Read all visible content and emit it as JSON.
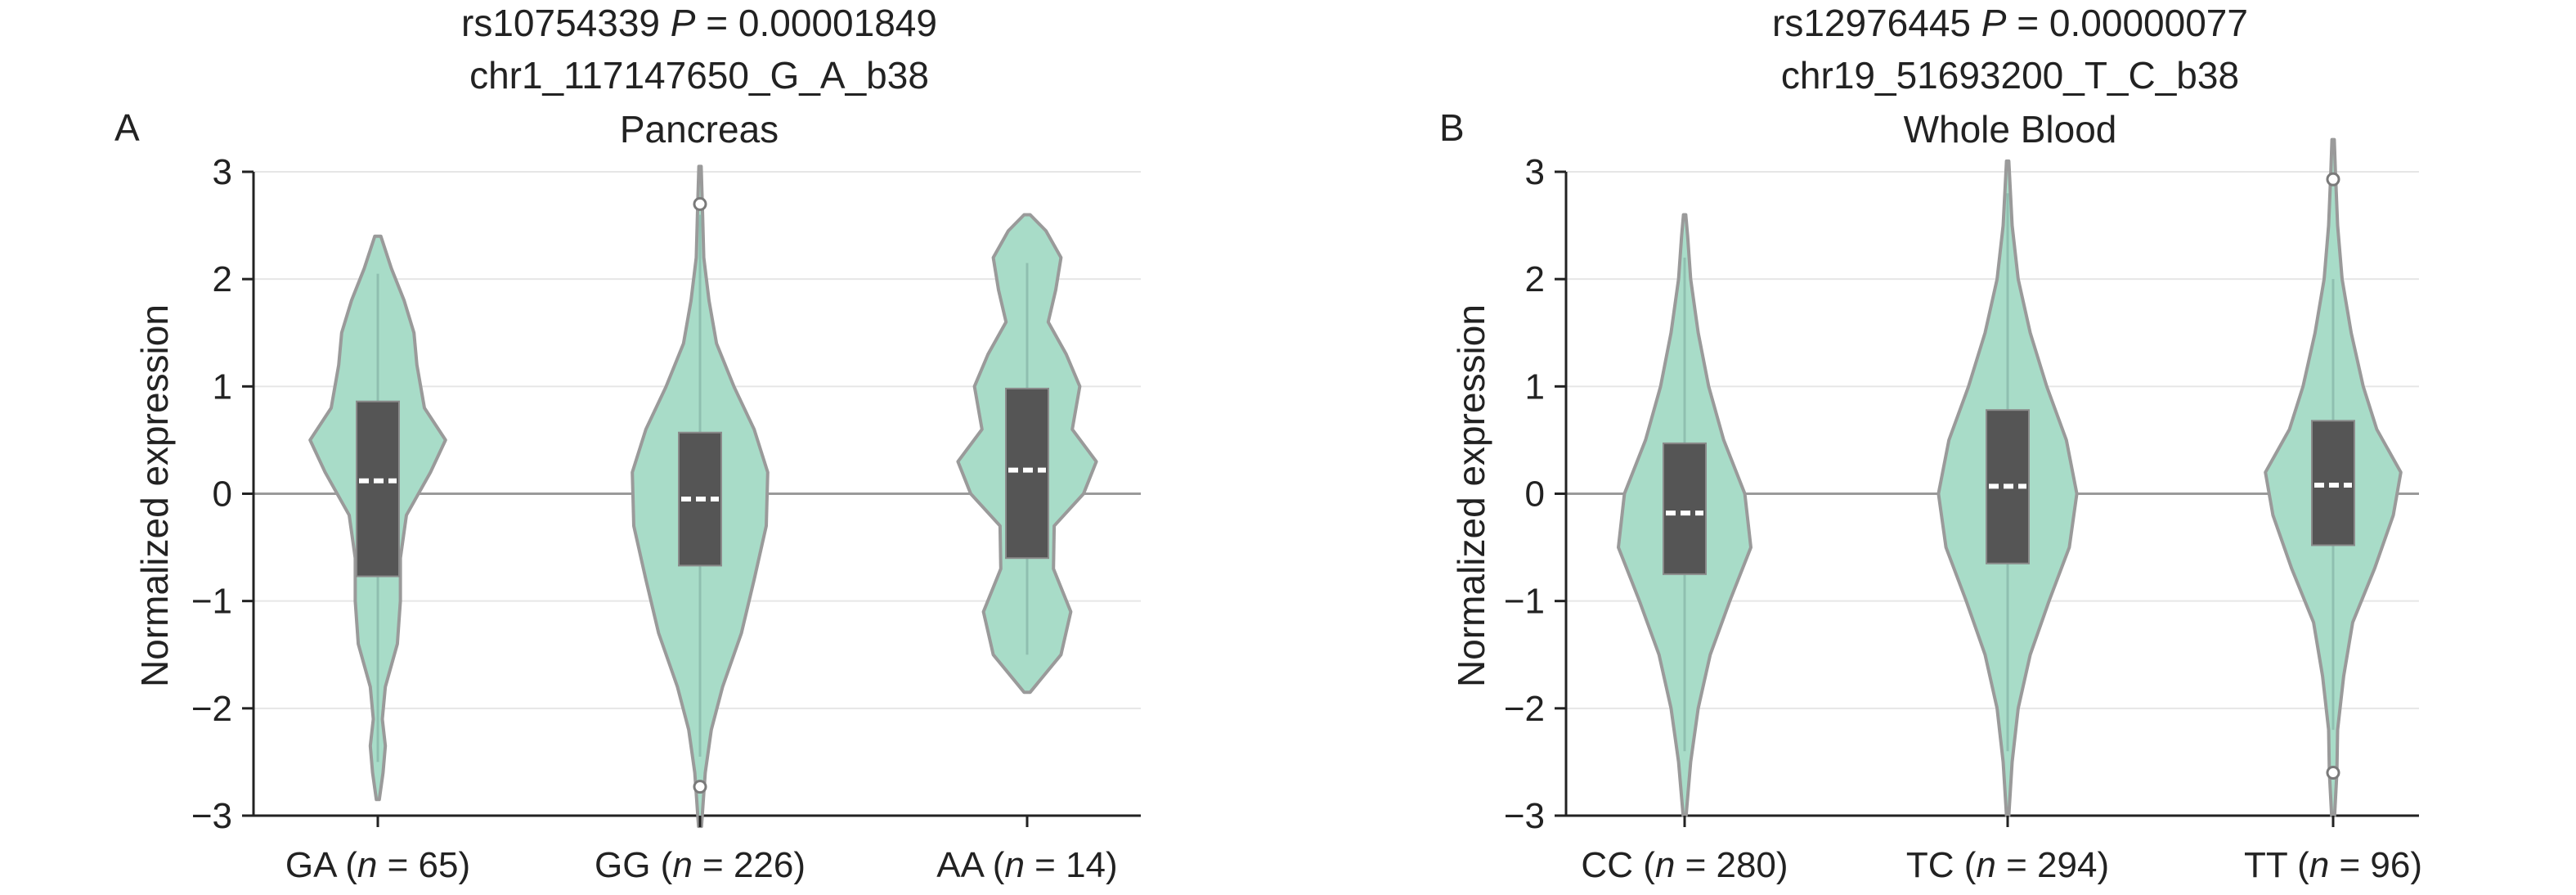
{
  "chart_data": [
    {
      "type": "violin",
      "panel": "A",
      "title": {
        "snp": "rs10754339",
        "p_label": "P",
        "p_value": "0.00001849",
        "variant": "chr1_117147650_G_A_b38",
        "tissue": "Pancreas"
      },
      "ylabel": "Normalized expression",
      "ylim": [
        -3,
        3
      ],
      "yticks": [
        "3",
        "2",
        "1",
        "0",
        "−1",
        "−2",
        "−3"
      ],
      "grid": "horizontal",
      "colors": {
        "violin_fill": "#a8dcc8",
        "violin_edge": "#9a9a9a",
        "box": "#555555",
        "median": "#ffffff"
      },
      "categories": [
        {
          "genotype": "GA",
          "n": 65,
          "n_letter": "n",
          "tail": ") ",
          "label_prefix": "GA (",
          "label_suffix": " = 65)",
          "q1": -0.77,
          "median": 0.12,
          "q3": 0.86,
          "whisker_low": -2.5,
          "whisker_high": 2.05,
          "outliers": [],
          "density": [
            [
              -2.85,
              0.02
            ],
            [
              -2.6,
              0.07
            ],
            [
              -2.35,
              0.1
            ],
            [
              -2.1,
              0.06
            ],
            [
              -1.8,
              0.1
            ],
            [
              -1.4,
              0.26
            ],
            [
              -1.0,
              0.3
            ],
            [
              -0.6,
              0.3
            ],
            [
              -0.2,
              0.38
            ],
            [
              0.2,
              0.7
            ],
            [
              0.5,
              0.9
            ],
            [
              0.8,
              0.62
            ],
            [
              1.2,
              0.52
            ],
            [
              1.5,
              0.48
            ],
            [
              1.8,
              0.35
            ],
            [
              2.1,
              0.18
            ],
            [
              2.4,
              0.04
            ]
          ]
        },
        {
          "genotype": "GG",
          "n": 226,
          "label_prefix": "GG (",
          "label_suffix": " = 226)",
          "q1": -0.67,
          "median": -0.05,
          "q3": 0.57,
          "whisker_low": -2.45,
          "whisker_high": 2.6,
          "outliers": [
            2.7,
            -2.73
          ],
          "density": [
            [
              -3.1,
              0.02
            ],
            [
              -2.6,
              0.07
            ],
            [
              -2.2,
              0.15
            ],
            [
              -1.8,
              0.3
            ],
            [
              -1.3,
              0.55
            ],
            [
              -0.8,
              0.72
            ],
            [
              -0.3,
              0.88
            ],
            [
              0.2,
              0.9
            ],
            [
              0.6,
              0.72
            ],
            [
              1.0,
              0.45
            ],
            [
              1.4,
              0.22
            ],
            [
              1.8,
              0.12
            ],
            [
              2.2,
              0.05
            ],
            [
              2.7,
              0.03
            ],
            [
              3.05,
              0.015
            ]
          ]
        },
        {
          "genotype": "AA",
          "n": 14,
          "label_prefix": "AA (",
          "label_suffix": " = 14)",
          "q1": -0.6,
          "median": 0.22,
          "q3": 0.98,
          "whisker_low": -1.5,
          "whisker_high": 2.15,
          "outliers": [],
          "density": [
            [
              -1.85,
              0.04
            ],
            [
              -1.5,
              0.45
            ],
            [
              -1.1,
              0.58
            ],
            [
              -0.7,
              0.35
            ],
            [
              -0.3,
              0.36
            ],
            [
              0.0,
              0.75
            ],
            [
              0.3,
              0.92
            ],
            [
              0.6,
              0.6
            ],
            [
              1.0,
              0.7
            ],
            [
              1.3,
              0.52
            ],
            [
              1.6,
              0.28
            ],
            [
              1.9,
              0.38
            ],
            [
              2.2,
              0.45
            ],
            [
              2.45,
              0.25
            ],
            [
              2.6,
              0.04
            ]
          ]
        }
      ]
    },
    {
      "type": "violin",
      "panel": "B",
      "title": {
        "snp": "rs12976445",
        "p_label": "P",
        "p_value": "0.00000077",
        "variant": "chr19_51693200_T_C_b38",
        "tissue": "Whole Blood"
      },
      "ylabel": "Normalized expression",
      "ylim": [
        -3,
        3
      ],
      "yticks": [
        "3",
        "2",
        "1",
        "0",
        "−1",
        "−2",
        "−3"
      ],
      "grid": "horizontal",
      "colors": {
        "violin_fill": "#a8dcc8",
        "violin_edge": "#9a9a9a",
        "box": "#555555",
        "median": "#ffffff"
      },
      "categories": [
        {
          "genotype": "CC",
          "n": 280,
          "label_prefix": "CC (",
          "label_suffix": " = 280)",
          "q1": -0.75,
          "median": -0.18,
          "q3": 0.47,
          "whisker_low": -2.4,
          "whisker_high": 2.2,
          "outliers": [],
          "density": [
            [
              -3.0,
              0.02
            ],
            [
              -2.5,
              0.08
            ],
            [
              -2.0,
              0.18
            ],
            [
              -1.5,
              0.34
            ],
            [
              -1.0,
              0.6
            ],
            [
              -0.5,
              0.88
            ],
            [
              0.0,
              0.8
            ],
            [
              0.5,
              0.52
            ],
            [
              1.0,
              0.32
            ],
            [
              1.5,
              0.18
            ],
            [
              2.0,
              0.08
            ],
            [
              2.4,
              0.04
            ],
            [
              2.6,
              0.015
            ]
          ]
        },
        {
          "genotype": "TC",
          "n": 294,
          "label_prefix": "TC (",
          "label_suffix": " = 294)",
          "q1": -0.65,
          "median": 0.07,
          "q3": 0.78,
          "whisker_low": -2.4,
          "whisker_high": 2.8,
          "outliers": [],
          "density": [
            [
              -3.0,
              0.015
            ],
            [
              -2.5,
              0.06
            ],
            [
              -2.0,
              0.14
            ],
            [
              -1.5,
              0.3
            ],
            [
              -1.0,
              0.55
            ],
            [
              -0.5,
              0.82
            ],
            [
              0.0,
              0.92
            ],
            [
              0.5,
              0.78
            ],
            [
              1.0,
              0.52
            ],
            [
              1.5,
              0.3
            ],
            [
              2.0,
              0.14
            ],
            [
              2.5,
              0.06
            ],
            [
              3.1,
              0.015
            ]
          ]
        },
        {
          "genotype": "TT",
          "n": 96,
          "label_prefix": "TT (",
          "label_suffix": " = 96)",
          "q1": -0.48,
          "median": 0.08,
          "q3": 0.68,
          "whisker_low": -2.2,
          "whisker_high": 2.0,
          "outliers": [
            2.93,
            -2.6
          ],
          "density": [
            [
              -3.0,
              0.02
            ],
            [
              -2.6,
              0.05
            ],
            [
              -2.2,
              0.06
            ],
            [
              -1.7,
              0.14
            ],
            [
              -1.2,
              0.26
            ],
            [
              -0.7,
              0.55
            ],
            [
              -0.2,
              0.8
            ],
            [
              0.2,
              0.9
            ],
            [
              0.6,
              0.58
            ],
            [
              1.0,
              0.4
            ],
            [
              1.5,
              0.24
            ],
            [
              2.0,
              0.12
            ],
            [
              2.5,
              0.06
            ],
            [
              3.0,
              0.03
            ],
            [
              3.3,
              0.015
            ]
          ]
        }
      ]
    }
  ]
}
